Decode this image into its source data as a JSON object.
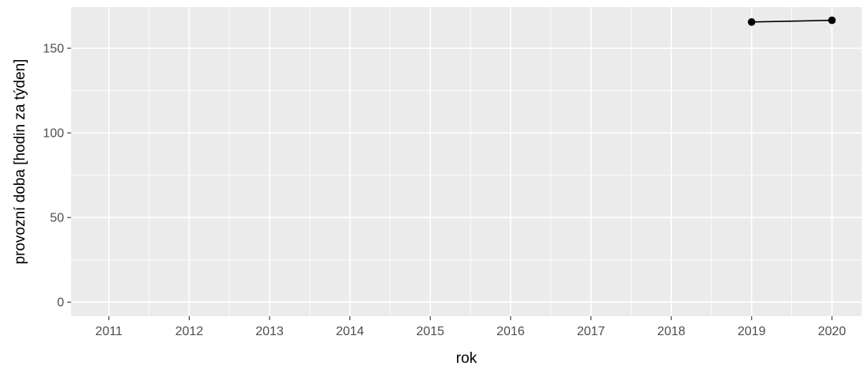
{
  "chart_data": {
    "type": "line",
    "title": "",
    "xlabel": "rok",
    "ylabel": "provozní doba [hodin za týden]",
    "x_ticks": [
      "2011",
      "2012",
      "2013",
      "2014",
      "2015",
      "2016",
      "2017",
      "2018",
      "2019",
      "2020"
    ],
    "y_ticks": [
      "0",
      "50",
      "100",
      "150"
    ],
    "xlim": [
      2010.53,
      2020.37
    ],
    "ylim": [
      -8.3,
      174.3
    ],
    "grid": true,
    "legend": "none",
    "series": [
      {
        "x": [
          2019,
          2020
        ],
        "y": [
          165.5,
          166.5
        ],
        "color": "#000000"
      }
    ],
    "panel_background": "#ebebeb",
    "grid_color": "#ffffff"
  }
}
